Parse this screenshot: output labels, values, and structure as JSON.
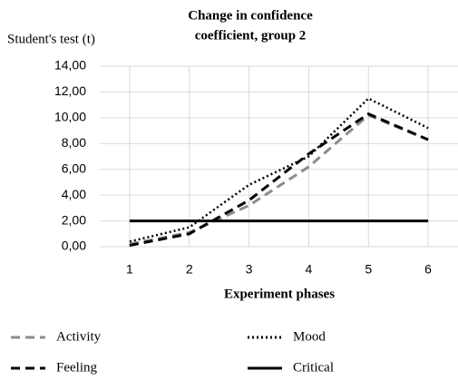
{
  "chart_data": {
    "type": "line",
    "title": "Change in confidence coefficient, group 2",
    "title_lines": [
      "Change in confidence",
      "coefficient, group 2"
    ],
    "y_label": "Student's test (t)",
    "x_label": "Experiment phases",
    "categories": [
      "1",
      "2",
      "3",
      "4",
      "5",
      "6"
    ],
    "series": [
      {
        "name": "Activity",
        "color": "#8c8c8c",
        "dash": "dashed",
        "values": [
          0.2,
          1.1,
          3.2,
          6.2,
          10.2,
          8.3
        ]
      },
      {
        "name": "Mood",
        "color": "#000000",
        "dash": "dotted",
        "values": [
          0.4,
          1.5,
          4.8,
          7.0,
          11.5,
          9.2
        ]
      },
      {
        "name": "Feeling",
        "color": "#000000",
        "dash": "dashed",
        "values": [
          0.1,
          1.0,
          3.6,
          7.2,
          10.3,
          8.3
        ]
      },
      {
        "name": "Critical",
        "color": "#000000",
        "dash": "solid",
        "values": [
          2,
          2,
          2,
          2,
          2,
          2
        ]
      }
    ],
    "ylim": [
      0,
      14
    ],
    "yticks": [
      {
        "value": 0,
        "label": "0,00"
      },
      {
        "value": 2,
        "label": "2,00"
      },
      {
        "value": 4,
        "label": "4,00"
      },
      {
        "value": 6,
        "label": "6,00"
      },
      {
        "value": 8,
        "label": "8,00"
      },
      {
        "value": 10,
        "label": "10,00"
      },
      {
        "value": 12,
        "label": "12,00"
      },
      {
        "value": 14,
        "label": "14,00"
      }
    ],
    "grid": true,
    "legend": "bottom"
  }
}
